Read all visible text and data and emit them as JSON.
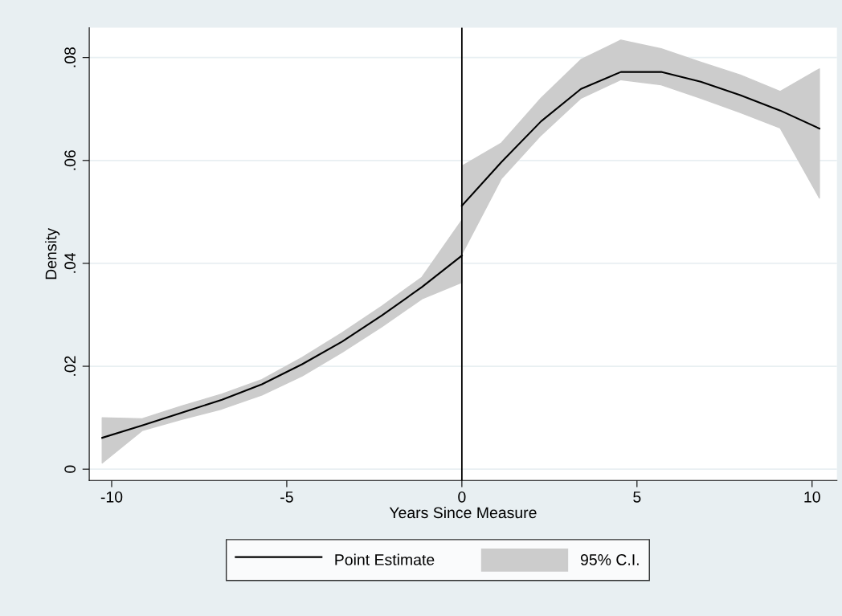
{
  "chart_data": {
    "type": "line",
    "xlabel": "Years Since Measure",
    "ylabel": "Density",
    "series": [
      {
        "name": "Point Estimate",
        "type": "line",
        "color": "#000000",
        "x": [
          -10.27,
          -9.13,
          -7.99,
          -6.85,
          -5.71,
          -4.56,
          -3.42,
          -2.28,
          -1.14,
          0
        ],
        "values": [
          0.0061,
          0.0085,
          0.011,
          0.0135,
          0.0165,
          0.0204,
          0.0248,
          0.0299,
          0.0354,
          0.0415
        ],
        "upper": [
          0.01,
          0.0098,
          0.0123,
          0.0146,
          0.0174,
          0.0217,
          0.0265,
          0.0317,
          0.0373,
          0.0484
        ],
        "lower": [
          0.0012,
          0.0075,
          0.0097,
          0.0117,
          0.0144,
          0.0181,
          0.0227,
          0.0277,
          0.0331,
          0.0363
        ]
      },
      {
        "color": "#000000",
        "x": [
          0,
          1.13,
          2.26,
          3.4,
          4.54,
          5.69,
          6.82,
          7.95,
          9.09,
          10.21
        ],
        "values": [
          0.0512,
          0.0597,
          0.0676,
          0.0739,
          0.0772,
          0.0772,
          0.0753,
          0.0727,
          0.0697,
          0.0662
        ],
        "upper": [
          0.0589,
          0.0634,
          0.0721,
          0.0796,
          0.0834,
          0.0817,
          0.0791,
          0.0766,
          0.0734,
          0.0778
        ],
        "lower": [
          0.0418,
          0.0565,
          0.0649,
          0.0721,
          0.0757,
          0.0747,
          0.0721,
          0.0693,
          0.0663,
          0.0527
        ]
      }
    ],
    "annotations": [
      "95% C.I."
    ],
    "xlim": [
      -10.64,
      10.71
    ],
    "xticks": [
      -10,
      -5,
      0,
      5,
      10
    ],
    "ylim": [
      -0.0022,
      0.0858
    ],
    "yticks": [
      {
        "value": 0,
        "label": "0"
      },
      {
        "value": 0.02,
        "label": ".02"
      },
      {
        "value": 0.04,
        "label": ".04"
      },
      {
        "value": 0.06,
        "label": ".06"
      },
      {
        "value": 0.08,
        "label": ".08"
      }
    ],
    "ref_lines": [
      {
        "axis": "x",
        "value": 0,
        "color": "#000000"
      }
    ],
    "grid": "y",
    "legend": "bottom"
  }
}
